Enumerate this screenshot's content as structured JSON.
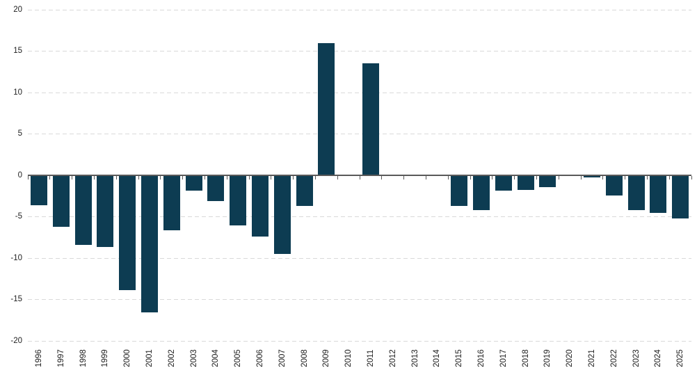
{
  "chart_data": {
    "type": "bar",
    "title": "",
    "xlabel": "",
    "ylabel": "",
    "categories": [
      "1996",
      "1997",
      "1998",
      "1999",
      "2000",
      "2001",
      "2002",
      "2003",
      "2004",
      "2005",
      "2006",
      "2007",
      "2008",
      "2009",
      "2010",
      "2011",
      "2012",
      "2013",
      "2014",
      "2015",
      "2016",
      "2017",
      "2018",
      "2019",
      "2020",
      "2021",
      "2022",
      "2023",
      "2024",
      "2025"
    ],
    "values": [
      -3.6,
      -6.2,
      -8.4,
      -8.6,
      -13.8,
      -16.5,
      -6.6,
      -1.8,
      -3.1,
      -6.0,
      -7.4,
      -9.5,
      -3.7,
      16.0,
      0,
      13.5,
      0,
      0,
      0,
      -3.7,
      -4.2,
      -1.8,
      -1.7,
      -1.4,
      0,
      -0.2,
      -2.4,
      -4.2,
      -4.5,
      -5.2
    ],
    "ylim": [
      -20,
      20
    ],
    "yticks": [
      20,
      15,
      10,
      5,
      0,
      -5,
      -10,
      -15,
      -20
    ],
    "grid": "horizontal-dashed",
    "legend": "none",
    "bar_color": "#0d3c52",
    "gridline_color": "#d9d9d9",
    "zero_line_color": "#595959",
    "label_color": "#222222"
  }
}
